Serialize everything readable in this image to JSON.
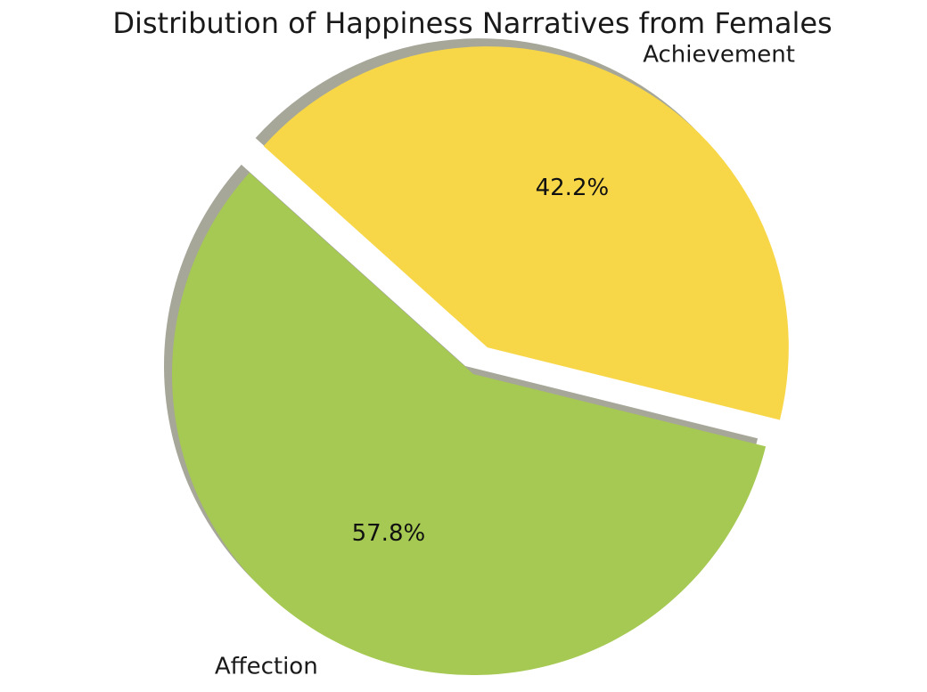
{
  "chart_data": {
    "type": "pie",
    "title": "Distribution of Happiness Narratives from Females",
    "labels": [
      "Affection",
      "Achievement"
    ],
    "values": [
      57.8,
      42.2
    ],
    "percent_labels": [
      "57.8%",
      "42.2%"
    ],
    "colors": [
      "#a5c952",
      "#f7d748"
    ],
    "exploded": [
      "Achievement"
    ],
    "shadow": true,
    "legend": "none"
  }
}
